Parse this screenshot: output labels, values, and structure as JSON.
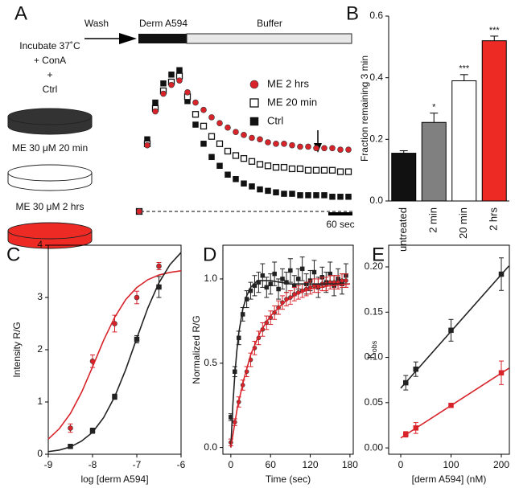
{
  "schematic": {
    "lines": [
      "Incubate 37˚C",
      "+ ConA",
      "+"
    ],
    "dishes": [
      {
        "label": "Ctrl",
        "color": "#333333"
      },
      {
        "label": "ME 30 μM 20 min",
        "color": "#ffffff"
      },
      {
        "label": "ME 30 μM 2 hrs",
        "color": "#ee2a24"
      }
    ],
    "protocol": {
      "wash": "Wash",
      "pulse": "Derm A594",
      "chase": "Buffer"
    }
  },
  "chart_data": [
    {
      "type": "scatter",
      "panel": "A",
      "frame": "none",
      "legend": "top-right",
      "x": [
        0,
        20,
        40,
        60,
        80,
        100,
        120,
        140,
        160,
        180,
        200,
        220,
        240,
        260,
        280,
        300,
        320,
        340,
        360,
        380,
        400,
        420,
        440,
        460,
        480,
        500,
        520
      ],
      "xlim": [
        0,
        530
      ],
      "ylim": [
        0,
        1
      ],
      "scalebar": {
        "value": 60,
        "label": "60 sec"
      },
      "series": [
        {
          "name": "ME 2 hrs",
          "color": "#d8232a",
          "marker": "circle",
          "values": [
            0,
            0.45,
            0.68,
            0.8,
            0.86,
            0.89,
            0.81,
            0.74,
            0.69,
            0.64,
            0.6,
            0.57,
            0.54,
            0.52,
            0.5,
            0.49,
            0.47,
            0.46,
            0.46,
            0.45,
            0.44,
            0.44,
            0.43,
            0.43,
            0.43,
            0.42,
            0.42
          ]
        },
        {
          "name": "ME 20 min",
          "color": "#111111",
          "marker": "open-square",
          "values": [
            0,
            0.46,
            0.7,
            0.82,
            0.88,
            0.92,
            0.78,
            0.66,
            0.58,
            0.51,
            0.46,
            0.41,
            0.38,
            0.36,
            0.34,
            0.32,
            0.31,
            0.3,
            0.3,
            0.29,
            0.29,
            0.28,
            0.28,
            0.28,
            0.28,
            0.27,
            0.27
          ]
        },
        {
          "name": "Ctrl",
          "color": "#111111",
          "marker": "square",
          "values": [
            0,
            0.49,
            0.74,
            0.87,
            0.93,
            0.96,
            0.75,
            0.59,
            0.46,
            0.37,
            0.31,
            0.25,
            0.22,
            0.19,
            0.17,
            0.15,
            0.14,
            0.13,
            0.12,
            0.12,
            0.11,
            0.11,
            0.11,
            0.11,
            0.1,
            0.1,
            0.1
          ]
        }
      ]
    },
    {
      "type": "bar",
      "panel": "B",
      "frame": "axes",
      "ylabel": "Fraction remaining 3 min",
      "categories": [
        "untreated",
        "2 min",
        "20 min",
        "2 hrs"
      ],
      "values": [
        0.155,
        0.255,
        0.39,
        0.52
      ],
      "errors": [
        0.008,
        0.03,
        0.02,
        0.015
      ],
      "stars": [
        null,
        "*",
        "***",
        "***"
      ],
      "colors": [
        "#111111",
        "#808080",
        "#ffffff",
        "#ee2a24"
      ],
      "ylim": [
        0,
        0.6
      ],
      "yticks": [
        {
          "value": 0,
          "label": "0.0"
        },
        {
          "value": 0.2,
          "label": "0.2"
        },
        {
          "value": 0.4,
          "label": "0.4"
        },
        {
          "value": 0.6,
          "label": "0.6"
        }
      ]
    },
    {
      "type": "scatter",
      "panel": "C",
      "frame": "box",
      "xlabel": "log [derm A594]",
      "ylabel": "Intensity R/G",
      "xlim": [
        -9,
        -6
      ],
      "ylim": [
        0,
        4
      ],
      "xticks": [
        -9,
        -8,
        -7,
        -6
      ],
      "yticks": [
        0,
        1,
        2,
        3,
        4
      ],
      "series": [
        {
          "color": "#d8232a",
          "marker": "circle",
          "x": [
            -8.5,
            -8,
            -7.5,
            -7,
            -6.5
          ],
          "values": [
            0.5,
            1.78,
            2.5,
            3.0,
            3.6
          ],
          "errors": [
            0.08,
            0.12,
            0.16,
            0.12,
            0.07
          ]
        },
        {
          "color": "#222222",
          "marker": "square",
          "x": [
            -8.5,
            -8,
            -7.5,
            -7,
            -6.5
          ],
          "values": [
            0.15,
            0.45,
            1.1,
            2.2,
            3.2
          ],
          "errors": [
            0.03,
            0.05,
            0.05,
            0.07,
            0.2
          ]
        },
        {
          "color": "#d8232a",
          "mode": "line",
          "x": [
            -9,
            -8.75,
            -8.5,
            -8.25,
            -8,
            -7.75,
            -7.5,
            -7.25,
            -7,
            -6.75,
            -6.5,
            -6.25,
            -6
          ],
          "values": [
            0.29,
            0.49,
            0.78,
            1.18,
            1.67,
            2.18,
            2.62,
            2.96,
            3.19,
            3.34,
            3.43,
            3.48,
            3.51
          ]
        },
        {
          "color": "#222222",
          "mode": "line",
          "x": [
            -9,
            -8.75,
            -8.5,
            -8.25,
            -8,
            -7.75,
            -7.5,
            -7.25,
            -7,
            -6.75,
            -6.5,
            -6.25,
            -6
          ],
          "values": [
            0.05,
            0.08,
            0.14,
            0.25,
            0.42,
            0.7,
            1.1,
            1.62,
            2.22,
            2.8,
            3.28,
            3.63,
            3.86
          ]
        }
      ]
    },
    {
      "type": "scatter",
      "panel": "D",
      "frame": "box",
      "xlabel": "Time (sec)",
      "ylabel": "Normalized R/G",
      "xlim": [
        -12,
        185
      ],
      "ylim": [
        -0.04,
        1.2
      ],
      "xticks": [
        0,
        60,
        120,
        180
      ],
      "yticks": [
        {
          "value": 0,
          "label": "0.0"
        },
        {
          "value": 0.5,
          "label": "0.5"
        },
        {
          "value": 1,
          "label": "1.0"
        }
      ],
      "x": [
        0,
        6,
        12,
        18,
        24,
        30,
        36,
        42,
        48,
        54,
        60,
        66,
        72,
        78,
        84,
        90,
        96,
        102,
        108,
        114,
        120,
        126,
        132,
        138,
        144,
        150,
        156,
        162,
        168,
        174
      ],
      "series": [
        {
          "color": "#222222",
          "marker": "square",
          "values": [
            0.18,
            0.45,
            0.65,
            0.79,
            0.88,
            0.93,
            0.96,
            0.98,
            1.02,
            0.95,
            0.97,
            1.03,
            0.94,
            1.0,
            0.98,
            1.05,
            0.96,
            1.0,
            1.06,
            0.97,
            0.99,
            1.04,
            0.95,
            1.01,
            0.98,
            1.03,
            0.96,
            1.0,
            0.97,
            1.02
          ],
          "errors": [
            0.02,
            0.03,
            0.04,
            0.04,
            0.05,
            0.05,
            0.06,
            0.06,
            0.07,
            0.06,
            0.06,
            0.07,
            0.06,
            0.06,
            0.06,
            0.07,
            0.06,
            0.06,
            0.07,
            0.06,
            0.06,
            0.07,
            0.06,
            0.06,
            0.06,
            0.07,
            0.06,
            0.06,
            0.06,
            0.07
          ]
        },
        {
          "color": "#d8232a",
          "marker": "circle",
          "values": [
            0.03,
            0.15,
            0.27,
            0.37,
            0.45,
            0.52,
            0.59,
            0.65,
            0.7,
            0.74,
            0.77,
            0.8,
            0.83,
            0.86,
            0.88,
            0.89,
            0.91,
            0.92,
            0.93,
            0.94,
            0.95,
            0.96,
            0.96,
            0.97,
            0.97,
            0.98,
            0.98,
            0.98,
            0.99,
            0.99
          ],
          "errors": [
            0.02,
            0.02,
            0.03,
            0.03,
            0.03,
            0.04,
            0.04,
            0.04,
            0.04,
            0.04,
            0.04,
            0.04,
            0.04,
            0.04,
            0.04,
            0.04,
            0.04,
            0.04,
            0.04,
            0.04,
            0.04,
            0.04,
            0.04,
            0.04,
            0.04,
            0.04,
            0.04,
            0.04,
            0.04,
            0.04
          ]
        },
        {
          "color": "#222222",
          "mode": "line",
          "x": [
            0,
            3,
            6,
            9,
            12,
            18,
            24,
            30,
            40,
            60,
            90,
            120,
            180
          ],
          "values": [
            0,
            0.25,
            0.43,
            0.57,
            0.68,
            0.82,
            0.9,
            0.95,
            0.99,
            0.99,
            0.97,
            0.97,
            0.97
          ]
        },
        {
          "color": "#d8232a",
          "mode": "line",
          "x": [
            0,
            10,
            20,
            30,
            45,
            60,
            80,
            100,
            120,
            150,
            180
          ],
          "values": [
            0,
            0.24,
            0.41,
            0.55,
            0.69,
            0.78,
            0.86,
            0.91,
            0.94,
            0.96,
            0.97
          ]
        }
      ]
    },
    {
      "type": "scatter",
      "panel": "E",
      "frame": "box",
      "xlabel": "[derm A594] (nM)",
      "ylabel": [
        "K",
        "obs"
      ],
      "xlim": [
        -24,
        216
      ],
      "ylim": [
        -0.007,
        0.224
      ],
      "xticks": [
        0,
        100,
        200
      ],
      "yticks": [
        {
          "value": 0,
          "label": "0.00"
        },
        {
          "value": 0.05,
          "label": "0.05"
        },
        {
          "value": 0.1,
          "label": "0.10"
        },
        {
          "value": 0.15,
          "label": "0.15"
        },
        {
          "value": 0.2,
          "label": "0.20"
        }
      ],
      "series": [
        {
          "color": "#222222",
          "marker": "square",
          "x": [
            10,
            30,
            100,
            200
          ],
          "values": [
            0.072,
            0.087,
            0.13,
            0.192
          ],
          "errors": [
            0.008,
            0.008,
            0.012,
            0.018
          ]
        },
        {
          "color": "#d8232a",
          "marker": "square",
          "x": [
            10,
            30,
            100,
            200
          ],
          "values": [
            0.015,
            0.022,
            0.047,
            0.083
          ],
          "errors": [
            0.003,
            0.006,
            0.002,
            0.013
          ]
        },
        {
          "color": "#222222",
          "mode": "line",
          "x": [
            0,
            215
          ],
          "values": [
            0.066,
            0.201
          ]
        },
        {
          "color": "#d8232a",
          "mode": "line",
          "x": [
            0,
            215
          ],
          "values": [
            0.011,
            0.088
          ]
        }
      ]
    }
  ]
}
